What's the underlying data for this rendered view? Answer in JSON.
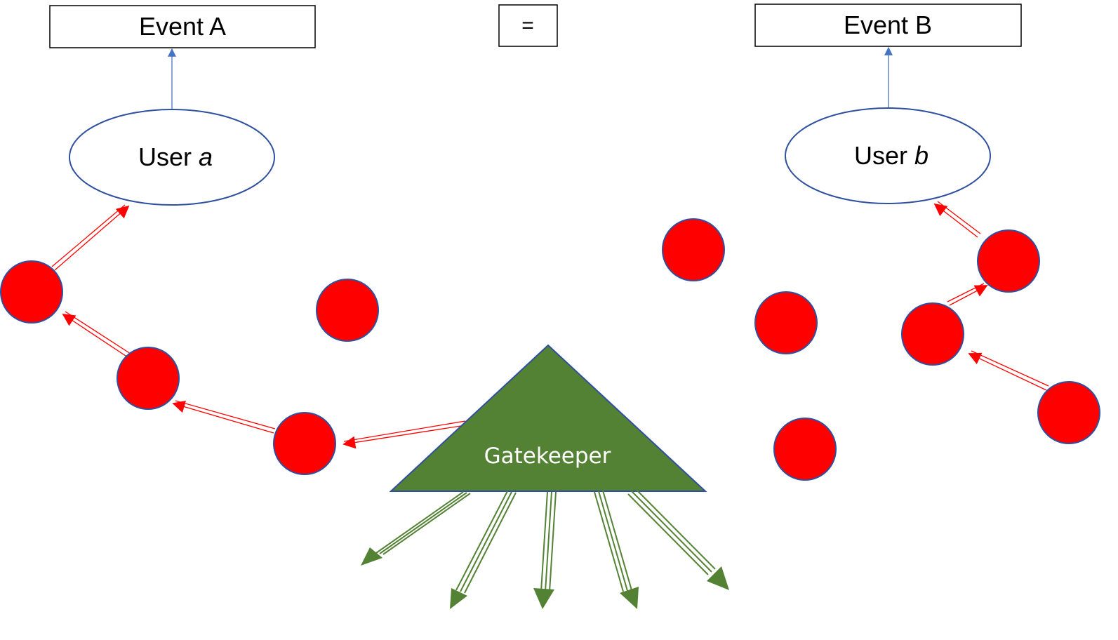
{
  "event_a": {
    "label": "Event A"
  },
  "equals": {
    "label": "="
  },
  "event_b": {
    "label": "Event B"
  },
  "user_a": {
    "prefix": "User ",
    "var": "a"
  },
  "user_b": {
    "prefix": "User ",
    "var": "b"
  },
  "gatekeeper": {
    "label": "Gatekeeper"
  },
  "colors": {
    "node_fill": "#ff0000",
    "node_stroke": "#2f4f9f",
    "link_arrow": "#ff0000",
    "gatekeeper_fill": "#548235",
    "event_arrow": "#4472c4"
  }
}
